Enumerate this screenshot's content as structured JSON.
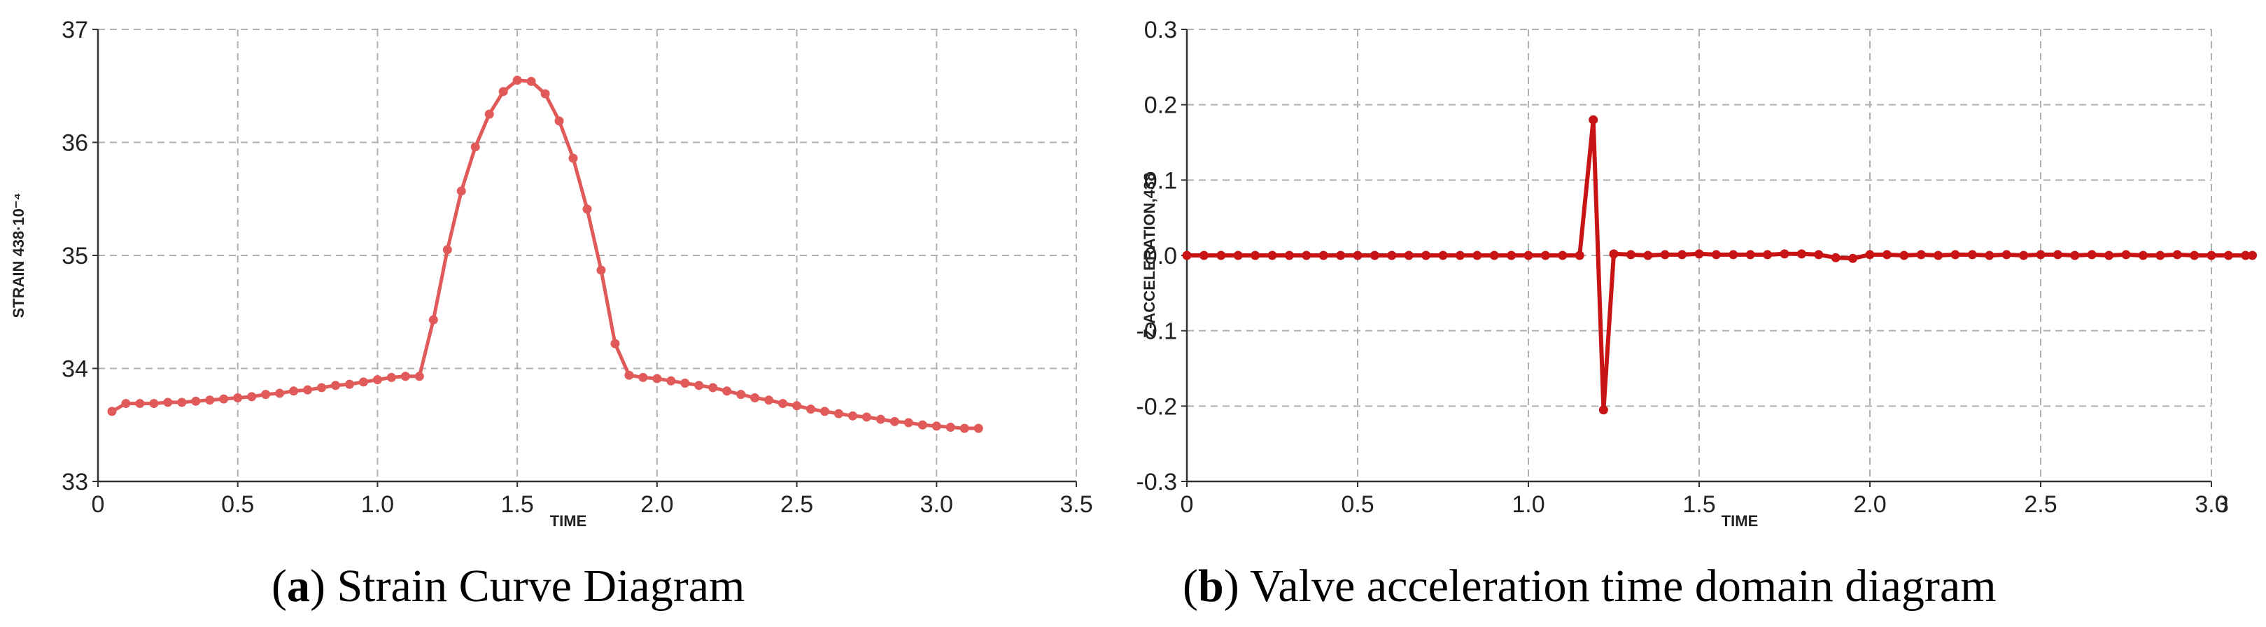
{
  "colors": {
    "series_a": "#e05a5a",
    "series_b": "#c81414",
    "grid": "#b0b0b0",
    "axis": "#333333"
  },
  "captions": [
    {
      "letter": "a",
      "text": "Strain Curve Diagram",
      "open": "(",
      "close": ")"
    },
    {
      "letter": "b",
      "text": "Valve acceleration time domain diagram",
      "open": "(",
      "close": ")"
    }
  ],
  "chart_data": [
    {
      "type": "line",
      "title": "",
      "xlabel": "TIME",
      "ylabel": "STRAIN 438·10⁻⁴",
      "xlim": [
        0,
        3.5
      ],
      "ylim": [
        33,
        37
      ],
      "xticks": [
        0,
        0.5,
        1.0,
        1.5,
        2.0,
        2.5,
        3.0,
        3.5
      ],
      "xtick_labels": [
        "0",
        "0.5",
        "1.0",
        "1.5",
        "2.0",
        "2.5",
        "3.0",
        "3.5"
      ],
      "yticks": [
        33,
        34,
        35,
        36,
        37
      ],
      "ytick_labels": [
        "33",
        "34",
        "35",
        "36",
        "37"
      ],
      "grid": true,
      "series": [
        {
          "name": "strain",
          "x": [
            0.05,
            0.1,
            0.15,
            0.2,
            0.25,
            0.3,
            0.35,
            0.4,
            0.45,
            0.5,
            0.55,
            0.6,
            0.65,
            0.7,
            0.75,
            0.8,
            0.85,
            0.9,
            0.95,
            1.0,
            1.05,
            1.1,
            1.15,
            1.2,
            1.25,
            1.3,
            1.35,
            1.4,
            1.45,
            1.5,
            1.55,
            1.6,
            1.65,
            1.7,
            1.75,
            1.8,
            1.85,
            1.9,
            1.95,
            2.0,
            2.05,
            2.1,
            2.15,
            2.2,
            2.25,
            2.3,
            2.35,
            2.4,
            2.45,
            2.5,
            2.55,
            2.6,
            2.65,
            2.7,
            2.75,
            2.8,
            2.85,
            2.9,
            2.95,
            3.0,
            3.05,
            3.1,
            3.15
          ],
          "y": [
            33.62,
            33.69,
            33.69,
            33.69,
            33.7,
            33.7,
            33.71,
            33.72,
            33.73,
            33.74,
            33.75,
            33.77,
            33.78,
            33.8,
            33.81,
            33.83,
            33.85,
            33.86,
            33.88,
            33.9,
            33.92,
            33.93,
            33.93,
            34.43,
            35.05,
            35.57,
            35.96,
            36.25,
            36.45,
            36.55,
            36.54,
            36.43,
            36.19,
            35.86,
            35.41,
            34.87,
            34.22,
            33.94,
            33.92,
            33.91,
            33.89,
            33.87,
            33.85,
            33.83,
            33.8,
            33.77,
            33.74,
            33.72,
            33.69,
            33.67,
            33.64,
            33.62,
            33.6,
            33.58,
            33.57,
            33.55,
            33.53,
            33.52,
            33.5,
            33.49,
            33.48,
            33.47,
            33.47
          ]
        }
      ]
    },
    {
      "type": "line",
      "title": "",
      "xlabel": "TIME",
      "ylabel": "Z-ACCELERATION,438",
      "xlim": [
        0,
        3
      ],
      "ylim": [
        -0.3,
        0.3
      ],
      "xticks": [
        0,
        0.5,
        1.0,
        1.5,
        2.0,
        2.5,
        3.0
      ],
      "xtick_labels": [
        "0",
        "0.5",
        "1.0",
        "1.5",
        "2.0",
        "2.5",
        "3.0"
      ],
      "yticks": [
        -0.3,
        -0.2,
        -0.1,
        0.0,
        0.1,
        0.2,
        0.3
      ],
      "ytick_labels": [
        "-0.3",
        "-0.2",
        "-0.1",
        "0.0",
        "0.1",
        "0.2",
        "0.3"
      ],
      "extra_xtick_label": "3",
      "grid": true,
      "series": [
        {
          "name": "z-acceleration",
          "x": [
            0,
            0.05,
            0.1,
            0.15,
            0.2,
            0.25,
            0.3,
            0.35,
            0.4,
            0.45,
            0.5,
            0.55,
            0.6,
            0.65,
            0.7,
            0.75,
            0.8,
            0.85,
            0.9,
            0.95,
            1.0,
            1.05,
            1.1,
            1.15,
            1.19,
            1.22,
            1.25,
            1.3,
            1.35,
            1.4,
            1.45,
            1.5,
            1.55,
            1.6,
            1.65,
            1.7,
            1.75,
            1.8,
            1.85,
            1.9,
            1.95,
            2.0,
            2.05,
            2.1,
            2.15,
            2.2,
            2.25,
            2.3,
            2.35,
            2.4,
            2.45,
            2.5,
            2.55,
            2.6,
            2.65,
            2.7,
            2.75,
            2.8,
            2.85,
            2.9,
            2.95,
            3.0,
            3.05,
            3.1,
            3.12
          ],
          "y": [
            0,
            0,
            0,
            0,
            0,
            0,
            0,
            0,
            0,
            0,
            0,
            0,
            0,
            0,
            0,
            0,
            0,
            0,
            0,
            0,
            0,
            0,
            0,
            0,
            0.18,
            -0.205,
            0.002,
            0.001,
            0,
            0.001,
            0.001,
            0.002,
            0.001,
            0.001,
            0.001,
            0.001,
            0.002,
            0.002,
            0.001,
            -0.003,
            -0.004,
            0.001,
            0.001,
            0,
            0.001,
            0,
            0.001,
            0.001,
            0,
            0.001,
            0,
            0.001,
            0.001,
            0,
            0.001,
            0,
            0.001,
            0,
            0,
            0.001,
            0,
            0,
            0,
            0,
            0
          ]
        }
      ]
    }
  ]
}
